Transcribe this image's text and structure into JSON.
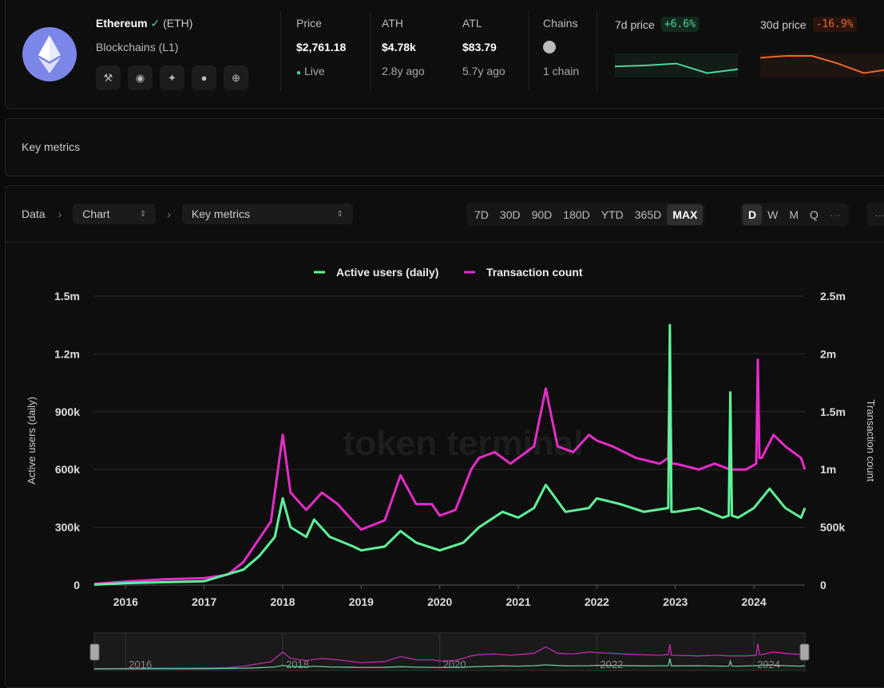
{
  "asset": {
    "name": "Ethereum",
    "ticker": "(ETH)",
    "category": "Blockchains (L1)",
    "links": [
      "hammer-icon",
      "github-icon",
      "twitter-icon",
      "coingecko-icon",
      "globe-icon"
    ]
  },
  "stats": [
    {
      "label": "Price",
      "value": "$2,761.18",
      "sub": "Live"
    },
    {
      "label": "ATH",
      "value": "$4.78k",
      "sub": "2.8y ago"
    },
    {
      "label": "ATL",
      "value": "$83.79",
      "sub": "5.7y ago"
    },
    {
      "label": "Chains",
      "value": "",
      "sub": "1 chain"
    }
  ],
  "price7d": {
    "label": "7d price",
    "change": "+6.6%",
    "color": "#4fd39a",
    "spark": [
      0.45,
      0.5,
      0.6,
      0.1,
      0.3
    ]
  },
  "price30d": {
    "label": "30d price",
    "change": "-16.9%",
    "color": "#e8692f",
    "spark": [
      0.9,
      1.0,
      1.0,
      0.6,
      0.1,
      0.3
    ]
  },
  "key_metrics_title": "Key metrics",
  "toolbar": {
    "crumb": "Data",
    "view": "Chart",
    "metric": "Key metrics",
    "ranges": [
      "7D",
      "30D",
      "90D",
      "180D",
      "YTD",
      "365D",
      "MAX"
    ],
    "active_range": "MAX",
    "granularity": [
      "D",
      "W",
      "M",
      "Q"
    ],
    "active_gran": "D",
    "more": "···"
  },
  "watermark": "token terminal",
  "chart_data": {
    "type": "line",
    "legend": [
      "Active users (daily)",
      "Transaction count"
    ],
    "colors": [
      "#5ef59a",
      "#e52cc8"
    ],
    "ylabel_left": "Active users (daily)",
    "ylabel_right": "Transaction count",
    "yticks_left": [
      "0",
      "300k",
      "600k",
      "900k",
      "1.2m",
      "1.5m"
    ],
    "yticks_right": [
      "0",
      "500k",
      "1m",
      "1.5m",
      "2m",
      "2.5m"
    ],
    "ylim_left": [
      0,
      1500000
    ],
    "ylim_right": [
      0,
      2500000
    ],
    "xlim": [
      2015.6,
      2024.65
    ],
    "xticks": [
      "2016",
      "2017",
      "2018",
      "2019",
      "2020",
      "2021",
      "2022",
      "2023",
      "2024"
    ],
    "series": [
      {
        "name": "Active users (daily)",
        "x": [
          2015.6,
          2016,
          2016.5,
          2017,
          2017.5,
          2017.7,
          2017.9,
          2018,
          2018.1,
          2018.3,
          2018.4,
          2018.6,
          2018.9,
          2019,
          2019.3,
          2019.5,
          2019.7,
          2020,
          2020.3,
          2020.5,
          2020.8,
          2021,
          2021.2,
          2021.35,
          2021.6,
          2021.9,
          2022,
          2022.3,
          2022.6,
          2022.91,
          2022.93,
          2022.95,
          2023,
          2023.3,
          2023.6,
          2023.68,
          2023.7,
          2023.72,
          2023.8,
          2024,
          2024.2,
          2024.4,
          2024.6,
          2024.65
        ],
        "y": [
          2000,
          10000,
          15000,
          20000,
          80000,
          150000,
          250000,
          450000,
          300000,
          250000,
          340000,
          250000,
          200000,
          180000,
          200000,
          280000,
          220000,
          180000,
          220000,
          300000,
          380000,
          350000,
          400000,
          520000,
          380000,
          400000,
          450000,
          420000,
          380000,
          400000,
          1350000,
          380000,
          380000,
          400000,
          350000,
          360000,
          1000000,
          360000,
          350000,
          400000,
          500000,
          400000,
          350000,
          400000
        ]
      },
      {
        "name": "Transaction count",
        "x": [
          2015.6,
          2016,
          2016.5,
          2017,
          2017.3,
          2017.5,
          2017.7,
          2017.85,
          2018,
          2018.1,
          2018.3,
          2018.5,
          2018.7,
          2018.9,
          2019,
          2019.3,
          2019.5,
          2019.7,
          2019.9,
          2020,
          2020.2,
          2020.4,
          2020.5,
          2020.7,
          2020.9,
          2021,
          2021.2,
          2021.35,
          2021.5,
          2021.7,
          2021.9,
          2022,
          2022.2,
          2022.5,
          2022.8,
          2022.91,
          2022.93,
          2022.95,
          2023,
          2023.3,
          2023.5,
          2023.7,
          2023.9,
          2024.03,
          2024.05,
          2024.07,
          2024.1,
          2024.25,
          2024.4,
          2024.6,
          2024.65
        ],
        "y": [
          10000,
          30000,
          50000,
          60000,
          90000,
          200000,
          400000,
          550000,
          1300000,
          800000,
          650000,
          800000,
          700000,
          550000,
          480000,
          560000,
          950000,
          700000,
          700000,
          600000,
          650000,
          1000000,
          1100000,
          1150000,
          1050000,
          1100000,
          1200000,
          1700000,
          1200000,
          1150000,
          1300000,
          1250000,
          1200000,
          1100000,
          1050000,
          1100000,
          1900000,
          1050000,
          1050000,
          1000000,
          1050000,
          1000000,
          1000000,
          1050000,
          1950000,
          1100000,
          1100000,
          1300000,
          1200000,
          1100000,
          1000000
        ]
      }
    ]
  }
}
